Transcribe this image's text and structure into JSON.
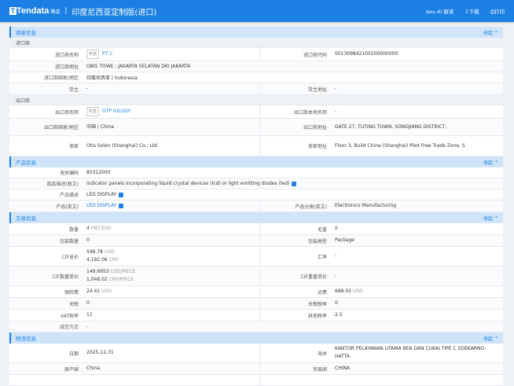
{
  "header": {
    "logo_main": "Tendata",
    "logo_sub": "腾道",
    "title": "印度尼西亚定制版(进口)",
    "ai": "AI 解读",
    "ai_beta": "Beta",
    "download": "下载",
    "print": "打印"
  },
  "collapse": "收起 ^",
  "sections": [
    {
      "title": "商家信息",
      "groups": [
        {
          "sub": "进口商",
          "rows": [
            {
              "l": "进口商名称",
              "v": "PT C",
              "tag": "初选",
              "link": true,
              "l2": "进口商代码",
              "v2": "001309842105500000000"
            },
            {
              "l": "进口商地址",
              "v": "OBIS TOWE                                                    ; JAKARTA SELATAN DKI JAKARTA",
              "full": true
            },
            {
              "l": "进口商国家/地区",
              "v": "印度尼西亚 | Indonesia",
              "full": true
            },
            {
              "l": "货主",
              "v": "-",
              "l2": "货主地址",
              "v2": "-"
            }
          ]
        },
        {
          "sub": "出口商",
          "rows": [
            {
              "l": "出口商名称",
              "v": "OTP                          IOLOGY",
              "tag": "初选",
              "link": true,
              "l2": "出口商本地名称",
              "v2": "-"
            },
            {
              "l": "出口商国家/地区",
              "v": "中国 | China",
              "l2": "出口商地址",
              "v2": "GATE 27,                                   TUTING TOWN, SONGJIANG DISTRICT,"
            },
            {
              "l": "卖家",
              "v": "Otis Solen                              (Shanghai) Co., Ltd",
              "l2": "卖家地址",
              "v2": "Floor 3, Build                      China (Shanghai) Pilot Free Trade Zone, S"
            }
          ]
        }
      ]
    },
    {
      "title": "产品信息",
      "groups": [
        {
          "rows": [
            {
              "l": "海关编码",
              "v": "85312000",
              "full": true
            },
            {
              "l": "商品描述(原文)",
              "v": "indicator panels incorporating liquid crystal devices (lcd) or light emitting diodes (led)",
              "icon": true,
              "full": true
            },
            {
              "l": "产品描述",
              "v": "LED DISPLAY",
              "icon": true,
              "full": true
            },
            {
              "l": "产品(英文)",
              "v": "LED DISPLAY",
              "icon": true,
              "link": true,
              "l2": "产品分类(英文)",
              "v2": "Electronics Manufacturing"
            }
          ]
        }
      ]
    },
    {
      "title": "交易信息",
      "groups": [
        {
          "rows": [
            {
              "l": "数量",
              "v": "4",
              "u": "PIECE(S)",
              "l2": "毛重",
              "v2": "0"
            },
            {
              "l": "包装数量",
              "v": "0",
              "l2": "包装类型",
              "v2": "Package"
            },
            {
              "l": "CIF总价",
              "v": "598.78",
              "u": "USD",
              "vb": "4,192.06",
              "ub": "CNY",
              "l2": "汇率",
              "v2": "-"
            },
            {
              "l": "CIF数量单价",
              "v": "149.6953",
              "u": "USD/PIECE",
              "vb": "1,048.02",
              "ub": "CNY/PIECE",
              "l2": "CIF重量单价",
              "v2": "-"
            },
            {
              "l": "保险费",
              "v": "24.41",
              "u": "USD",
              "l2": "运费",
              "v2": "688.03",
              "u2": "USD"
            },
            {
              "l": "关税",
              "v": "0",
              "l2": "关税税率",
              "v2": "0"
            },
            {
              "l": "VAT税率",
              "v": "11",
              "l2": "其他税率",
              "v2": "2.5"
            },
            {
              "l": "成交方式",
              "v": "-",
              "full": true
            }
          ]
        }
      ]
    },
    {
      "title": "物流信息",
      "groups": [
        {
          "rows": [
            {
              "l": "日期",
              "v": "2025-12-31",
              "l2": "海关",
              "v2": "KANTOR PELAYANAN UTAMA BEA DAN CUKAI TIPE C SOEKARNO-HATTA"
            },
            {
              "l": "原产国",
              "v": "China",
              "l2": "贸易国",
              "v2": "CHINA"
            },
            {
              "l": "",
              "v": "",
              "l2": "",
              "v2": ""
            }
          ]
        }
      ]
    }
  ]
}
